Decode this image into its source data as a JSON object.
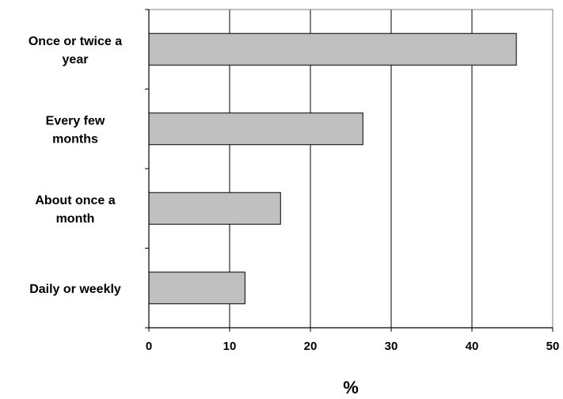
{
  "chart_data": {
    "type": "bar",
    "orientation": "horizontal",
    "categories": [
      [
        "Once or twice a",
        "year"
      ],
      [
        "Every few",
        "months"
      ],
      [
        "About once a",
        "month"
      ],
      [
        "Daily or weekly"
      ]
    ],
    "values": [
      45.5,
      26.5,
      16.3,
      11.9
    ],
    "xlabel": "%",
    "xlim": [
      0,
      50
    ],
    "x_ticks": [
      "0",
      "10",
      "20",
      "30",
      "40",
      "50"
    ],
    "grid": "vertical",
    "colors": {
      "bar_fill": "#c0c0c0",
      "bar_stroke": "#000000",
      "plot_border": "#808080",
      "gridline": "#000000"
    }
  }
}
